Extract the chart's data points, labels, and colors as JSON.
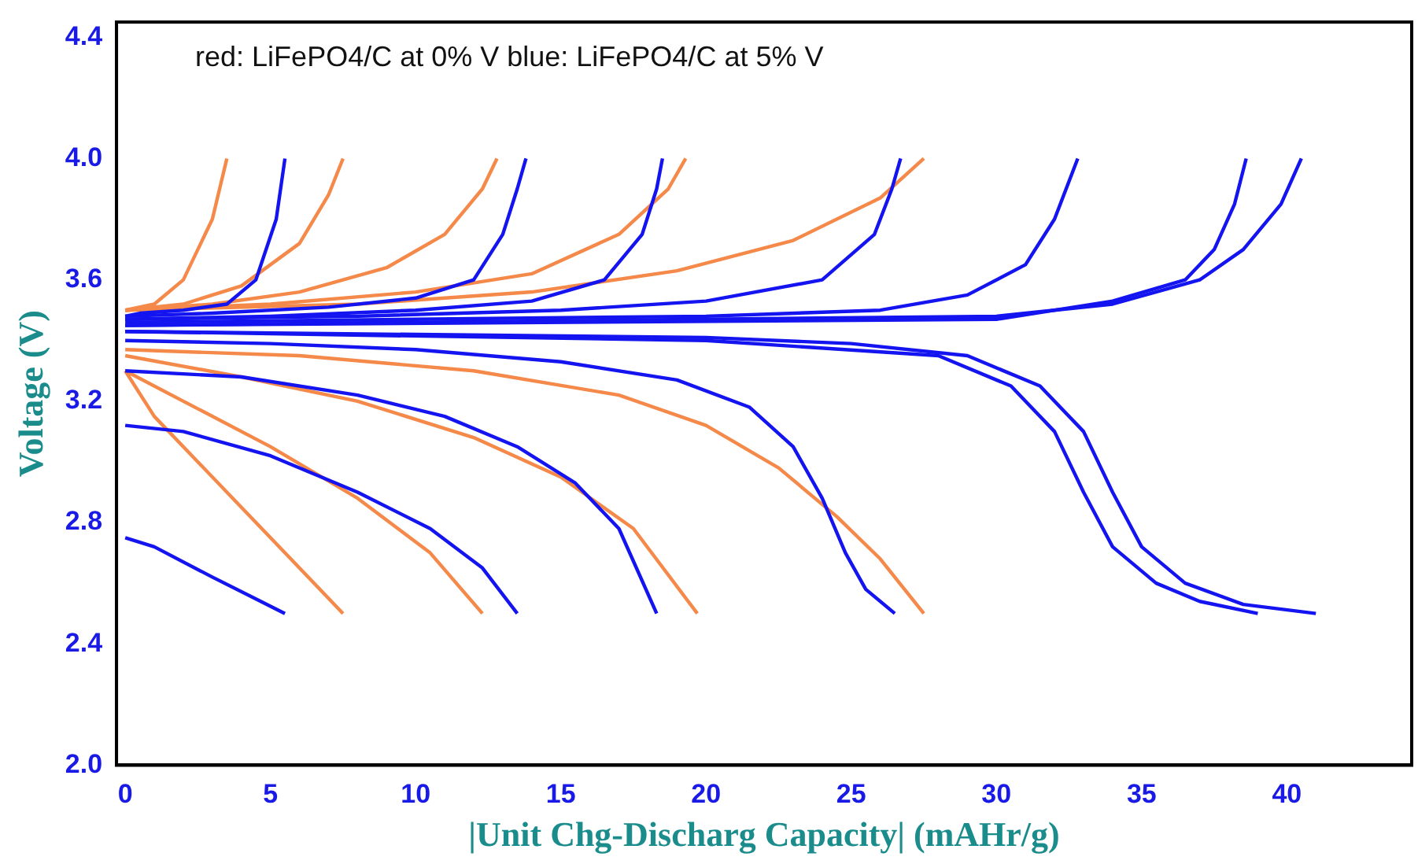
{
  "chart_data": {
    "type": "line",
    "xlabel": "|Unit Chg-Discharg Capacity| (mAHr/g)",
    "ylabel": "Voltage (V)",
    "annotations": [
      "red: LiFePO4/C at 0% V blue: LiFePO4/C at 5% V"
    ],
    "xlim": [
      -0.3,
      44.3
    ],
    "ylim": [
      2.0,
      4.45
    ],
    "xticks": [
      0,
      5,
      10,
      15,
      20,
      25,
      30,
      35,
      40
    ],
    "yticks": [
      {
        "value": 2,
        "label": "2.0"
      },
      2.4,
      2.8,
      3.2,
      3.6,
      {
        "value": 4,
        "label": "4.0"
      },
      4.4
    ],
    "grid": false,
    "legend": false,
    "marker": "none",
    "series": [
      {
        "color": "#1414f0",
        "x": [
          0,
          0.5,
          2,
          3.5,
          4.5,
          5.2,
          5.5
        ],
        "values": [
          3.48,
          3.49,
          3.5,
          3.52,
          3.6,
          3.8,
          4.0
        ]
      },
      {
        "color": "#1414f0",
        "x": [
          0,
          3,
          7,
          10,
          12,
          13,
          13.5,
          13.8
        ],
        "values": [
          3.48,
          3.49,
          3.51,
          3.54,
          3.6,
          3.75,
          3.9,
          4.0
        ]
      },
      {
        "color": "#1414f0",
        "x": [
          0,
          5,
          10,
          14,
          16.5,
          17.8,
          18.3,
          18.5
        ],
        "values": [
          3.47,
          3.48,
          3.5,
          3.53,
          3.6,
          3.75,
          3.9,
          4.0
        ]
      },
      {
        "color": "#1414f0",
        "x": [
          0,
          8,
          15,
          20,
          24,
          25.8,
          26.4,
          26.7
        ],
        "values": [
          3.47,
          3.48,
          3.5,
          3.53,
          3.6,
          3.75,
          3.9,
          4.0
        ]
      },
      {
        "color": "#1414f0",
        "x": [
          0,
          10,
          20,
          26,
          29,
          31,
          32,
          32.8
        ],
        "values": [
          3.46,
          3.47,
          3.48,
          3.5,
          3.55,
          3.65,
          3.8,
          4.0
        ]
      },
      {
        "color": "#1414f0",
        "x": [
          0,
          10,
          20,
          30,
          34,
          37,
          38.5,
          39.8,
          40.5
        ],
        "values": [
          3.45,
          3.46,
          3.47,
          3.48,
          3.52,
          3.6,
          3.7,
          3.85,
          4.0
        ]
      },
      {
        "color": "#1414f0",
        "x": [
          0,
          30,
          34,
          36.5,
          37.5,
          38.2,
          38.6
        ],
        "values": [
          3.45,
          3.47,
          3.53,
          3.6,
          3.7,
          3.85,
          4.0
        ]
      },
      {
        "color": "#1414f0",
        "x": [
          0,
          1,
          3,
          5.5
        ],
        "values": [
          2.75,
          2.72,
          2.62,
          2.5
        ]
      },
      {
        "color": "#1414f0",
        "x": [
          0,
          2,
          5,
          8,
          10.5,
          12.3,
          13.5
        ],
        "values": [
          3.12,
          3.1,
          3.02,
          2.9,
          2.78,
          2.65,
          2.5
        ]
      },
      {
        "color": "#1414f0",
        "x": [
          0,
          4,
          8,
          11,
          13.5,
          15.5,
          17,
          18.3
        ],
        "values": [
          3.3,
          3.28,
          3.22,
          3.15,
          3.05,
          2.93,
          2.78,
          2.5
        ]
      },
      {
        "color": "#1414f0",
        "x": [
          0,
          5,
          10,
          15,
          19,
          21.5,
          23,
          24,
          24.8,
          25.5,
          26.5
        ],
        "values": [
          3.4,
          3.39,
          3.37,
          3.33,
          3.27,
          3.18,
          3.05,
          2.88,
          2.7,
          2.58,
          2.5
        ]
      },
      {
        "color": "#1414f0",
        "x": [
          0,
          10,
          20,
          25,
          29,
          31.5,
          33,
          34,
          35,
          36.5,
          38.5,
          41
        ],
        "values": [
          3.43,
          3.42,
          3.41,
          3.39,
          3.35,
          3.25,
          3.1,
          2.9,
          2.72,
          2.6,
          2.53,
          2.5
        ]
      },
      {
        "color": "#1414f0",
        "x": [
          0,
          20,
          28,
          30.5,
          32,
          33,
          34,
          35.5,
          37,
          39
        ],
        "values": [
          3.43,
          3.4,
          3.35,
          3.25,
          3.1,
          2.9,
          2.72,
          2.6,
          2.54,
          2.5
        ]
      },
      {
        "color": "#f4894a",
        "x": [
          0,
          1,
          2,
          3,
          3.5
        ],
        "values": [
          3.5,
          3.52,
          3.6,
          3.8,
          4.0
        ]
      },
      {
        "color": "#f4894a",
        "x": [
          0,
          2,
          4,
          6,
          7,
          7.5
        ],
        "values": [
          3.5,
          3.52,
          3.58,
          3.72,
          3.88,
          4.0
        ]
      },
      {
        "color": "#f4894a",
        "x": [
          0,
          3,
          6,
          9,
          11,
          12.3,
          12.8
        ],
        "values": [
          3.5,
          3.52,
          3.56,
          3.64,
          3.75,
          3.9,
          4.0
        ]
      },
      {
        "color": "#f4894a",
        "x": [
          0,
          5,
          10,
          14,
          17,
          18.7,
          19.3
        ],
        "values": [
          3.5,
          3.52,
          3.56,
          3.62,
          3.75,
          3.9,
          4.0
        ]
      },
      {
        "color": "#f4894a",
        "x": [
          0,
          8,
          14,
          19,
          23,
          26,
          27.5
        ],
        "values": [
          3.5,
          3.52,
          3.56,
          3.63,
          3.73,
          3.87,
          4.0
        ]
      },
      {
        "color": "#f4894a",
        "x": [
          0,
          1,
          2.5,
          4,
          5.5,
          7.5
        ],
        "values": [
          3.3,
          3.15,
          3.0,
          2.85,
          2.7,
          2.5
        ]
      },
      {
        "color": "#f4894a",
        "x": [
          0,
          2,
          5,
          8,
          10.5,
          12.3
        ],
        "values": [
          3.3,
          3.2,
          3.05,
          2.88,
          2.7,
          2.5
        ]
      },
      {
        "color": "#f4894a",
        "x": [
          0,
          4,
          8,
          12,
          15,
          17.5,
          19.7
        ],
        "values": [
          3.35,
          3.28,
          3.2,
          3.08,
          2.95,
          2.78,
          2.5
        ]
      },
      {
        "color": "#f4894a",
        "x": [
          0,
          6,
          12,
          17,
          20,
          22.5,
          24.5,
          26,
          27.5
        ],
        "values": [
          3.37,
          3.35,
          3.3,
          3.22,
          3.12,
          2.98,
          2.82,
          2.68,
          2.5
        ]
      }
    ]
  }
}
